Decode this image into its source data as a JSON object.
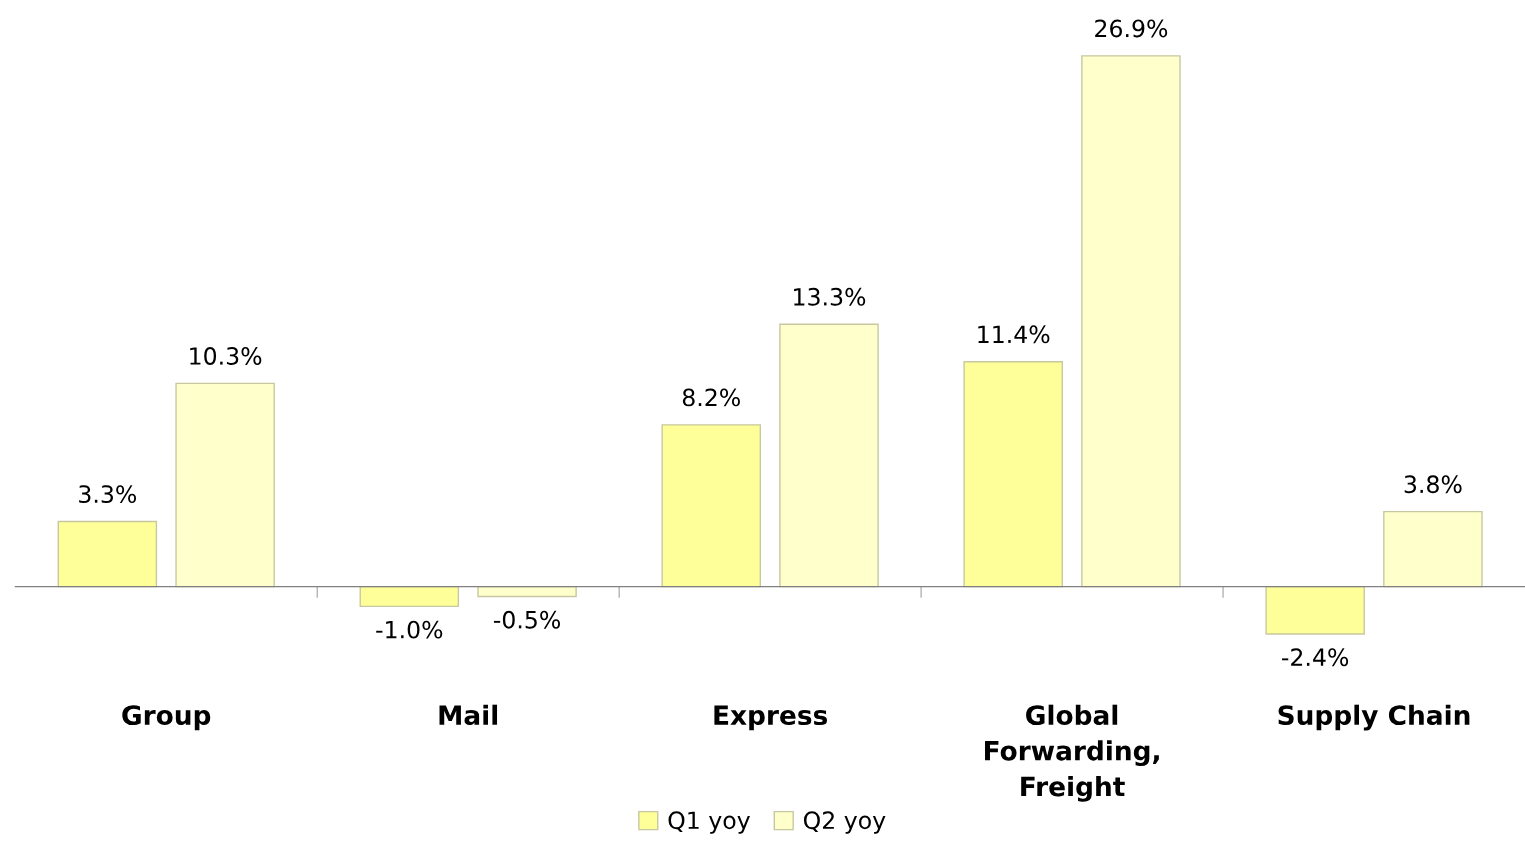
{
  "chart_data": {
    "type": "bar",
    "categories": [
      "Group",
      "Mail",
      "Express",
      "Global\nForwarding,\nFreight",
      "Supply Chain"
    ],
    "series": [
      {
        "name": "Q1 yoy",
        "color": "#ffff99",
        "values": [
          3.3,
          -1.0,
          8.2,
          11.4,
          -2.4
        ],
        "value_labels": [
          "3.3%",
          "-1.0%",
          "8.2%",
          "11.4%",
          "-2.4%"
        ]
      },
      {
        "name": "Q2 yoy",
        "color": "#ffffcc",
        "values": [
          10.3,
          -0.5,
          13.3,
          26.9,
          3.8
        ],
        "value_labels": [
          "10.3%",
          "-0.5%",
          "13.3%",
          "26.9%",
          "3.8%"
        ]
      }
    ],
    "tick_labels": "x",
    "grid": false,
    "legend": "bottom"
  }
}
